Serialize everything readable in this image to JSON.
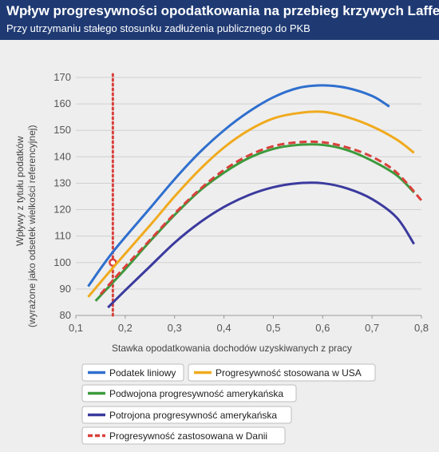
{
  "header": {
    "title": "Wpływ progresywności opodatkowania na przebieg krzywych Laffera",
    "subtitle": "Przy utrzymaniu stałego stosunku zadłużenia publicznego do PKB"
  },
  "chart_data": {
    "type": "line",
    "title": "Wpływ progresywności opodatkowania na przebieg krzywych Laffera",
    "subtitle": "Przy utrzymaniu stałego stosunku zadłużenia publicznego do PKB",
    "xlabel": "Stawka opodatkowania dochodów uzyskiwanych z pracy",
    "ylabel_lines": [
      "Wpływy z tytułu podatków",
      "(wyrażone jako odsetek wielkości referencyjnej)"
    ],
    "xlim": [
      0.1,
      0.8
    ],
    "ylim": [
      80,
      170
    ],
    "x_ticks": [
      "0,1",
      "0,2",
      "0,3",
      "0,4",
      "0,5",
      "0,6",
      "0,7",
      "0,8"
    ],
    "y_ticks": [
      "80",
      "90",
      "100",
      "110",
      "120",
      "130",
      "140",
      "150",
      "160",
      "170"
    ],
    "grid": "horizontal",
    "legend_position": "bottom",
    "reference_line": {
      "x": 0.175,
      "color": "#d9403b",
      "style": "dotted"
    },
    "reference_point": {
      "x": 0.175,
      "y": 100,
      "color": "#d9403b"
    },
    "series": [
      {
        "name": "Podatek liniowy",
        "color": "#2f6fce",
        "dashed": false,
        "points": [
          [
            0.125,
            91
          ],
          [
            0.175,
            104
          ],
          [
            0.25,
            120.5
          ],
          [
            0.3,
            131.5
          ],
          [
            0.35,
            141.5
          ],
          [
            0.4,
            150
          ],
          [
            0.45,
            157
          ],
          [
            0.5,
            162.5
          ],
          [
            0.55,
            166
          ],
          [
            0.6,
            167
          ],
          [
            0.65,
            166
          ],
          [
            0.7,
            163
          ],
          [
            0.735,
            159
          ]
        ]
      },
      {
        "name": "Progresywność stosowana w USA",
        "color": "#f0aa1e",
        "dashed": false,
        "points": [
          [
            0.125,
            87
          ],
          [
            0.175,
            98
          ],
          [
            0.25,
            114
          ],
          [
            0.3,
            125
          ],
          [
            0.35,
            135
          ],
          [
            0.4,
            143.5
          ],
          [
            0.45,
            150
          ],
          [
            0.5,
            154.5
          ],
          [
            0.55,
            156.5
          ],
          [
            0.6,
            157
          ],
          [
            0.65,
            155
          ],
          [
            0.7,
            151.5
          ],
          [
            0.75,
            146.5
          ],
          [
            0.785,
            141.5
          ]
        ]
      },
      {
        "name": "Podwojona progresywność amerykańska",
        "color": "#3c9a3c",
        "dashed": false,
        "points": [
          [
            0.14,
            85.5
          ],
          [
            0.2,
            97.5
          ],
          [
            0.25,
            108
          ],
          [
            0.3,
            118
          ],
          [
            0.35,
            127
          ],
          [
            0.4,
            134
          ],
          [
            0.45,
            139.5
          ],
          [
            0.5,
            143
          ],
          [
            0.55,
            144.5
          ],
          [
            0.6,
            144.5
          ],
          [
            0.65,
            142.5
          ],
          [
            0.7,
            138.5
          ],
          [
            0.75,
            133
          ],
          [
            0.785,
            126.5
          ]
        ]
      },
      {
        "name": "Potrojona progresywność amerykańska",
        "color": "#3b3a9e",
        "dashed": false,
        "points": [
          [
            0.165,
            83
          ],
          [
            0.2,
            89.5
          ],
          [
            0.25,
            98.5
          ],
          [
            0.3,
            107.5
          ],
          [
            0.35,
            115
          ],
          [
            0.4,
            121
          ],
          [
            0.45,
            125.5
          ],
          [
            0.5,
            128.5
          ],
          [
            0.55,
            130
          ],
          [
            0.6,
            130
          ],
          [
            0.65,
            128
          ],
          [
            0.7,
            124
          ],
          [
            0.75,
            117
          ],
          [
            0.785,
            107
          ]
        ]
      },
      {
        "name": "Progresywność zastosowana w Danii",
        "color": "#d9403b",
        "dashed": true,
        "points": [
          [
            0.15,
            88
          ],
          [
            0.2,
            98.5
          ],
          [
            0.25,
            108.5
          ],
          [
            0.3,
            118.5
          ],
          [
            0.35,
            127.5
          ],
          [
            0.4,
            135
          ],
          [
            0.45,
            140.5
          ],
          [
            0.5,
            144
          ],
          [
            0.55,
            145.5
          ],
          [
            0.6,
            145.5
          ],
          [
            0.65,
            143.5
          ],
          [
            0.7,
            140
          ],
          [
            0.75,
            134
          ],
          [
            0.8,
            123.5
          ]
        ]
      }
    ]
  }
}
